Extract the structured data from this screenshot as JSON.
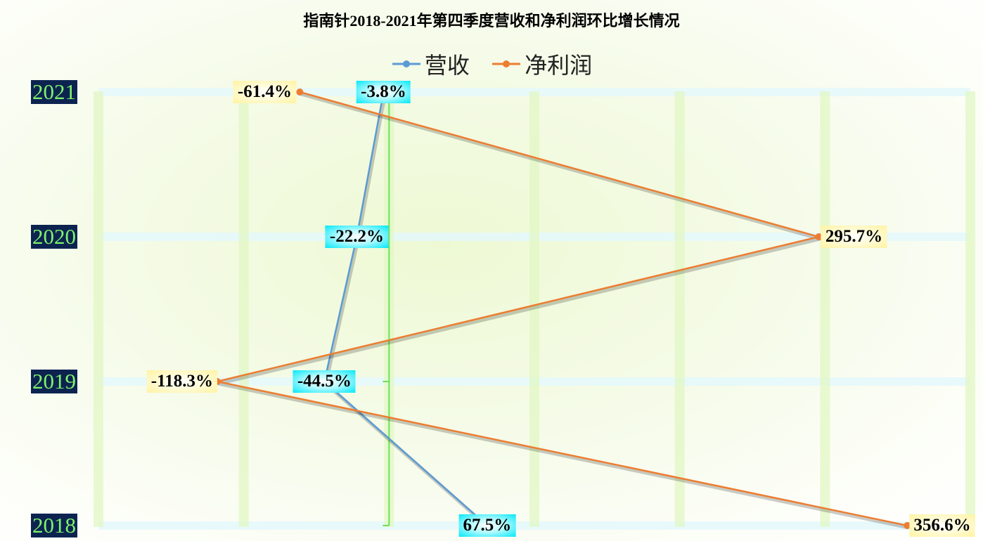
{
  "chart_data": {
    "type": "line",
    "title": "指南针2018-2021年第四季度营收和净利润环比增长情况",
    "categories": [
      "2018",
      "2019",
      "2020",
      "2021"
    ],
    "series": [
      {
        "name": "营收",
        "values": [
          67.5,
          -44.5,
          -22.2,
          -3.8
        ],
        "labels": [
          "67.5%",
          "-44.5%",
          "-22.2%",
          "-3.8%"
        ],
        "color": "#5b9bd5"
      },
      {
        "name": "净利润",
        "values": [
          356.6,
          -118.3,
          295.7,
          -61.4
        ],
        "labels": [
          "356.6%",
          "-118.3%",
          "295.7%",
          "-61.4%"
        ],
        "color": "#ed7d31"
      }
    ],
    "value_axis_range": [
      -200,
      400
    ],
    "value_axis_orientation": "horizontal",
    "category_axis_orientation": "vertical",
    "grid": true,
    "legend_position": "top"
  }
}
